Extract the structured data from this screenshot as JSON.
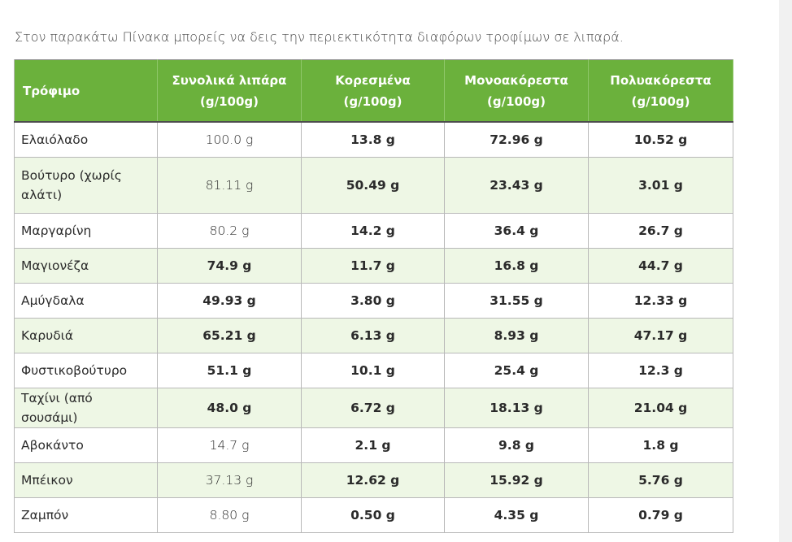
{
  "intro": "Στον παρακάτω Πίνακα μπορείς να δεις την περιεκτικότητα διαφόρων τροφίμων σε λιπαρά.",
  "colors": {
    "header_bg": "#6bb13c",
    "alt_row_bg": "#eef7e5"
  },
  "table": {
    "headers": [
      "Τρόφιμο",
      "Συνολικά λιπάρα (g/100g)",
      "Κορεσμένα (g/100g)",
      "Μονοακόρεστα (g/100g)",
      "Πολυακόρεστα (g/100g)"
    ],
    "rows": [
      {
        "food": "Ελαιόλαδο",
        "total": "100.0 g",
        "saturated": "13.8 g",
        "mono": "72.96 g",
        "poly": "10.52 g"
      },
      {
        "food": "Βούτυρο (χωρίς αλάτι)",
        "total": "81.11 g",
        "saturated": "50.49 g",
        "mono": "23.43 g",
        "poly": "3.01 g"
      },
      {
        "food": "Μαργαρίνη",
        "total": "80.2 g",
        "saturated": "14.2 g",
        "mono": "36.4 g",
        "poly": "26.7 g"
      },
      {
        "food": "Μαγιονέζα",
        "total": "74.9 g",
        "saturated": "11.7 g",
        "mono": "16.8 g",
        "poly": "44.7 g"
      },
      {
        "food": "Αμύγδαλα",
        "total": "49.93 g",
        "saturated": "3.80 g",
        "mono": "31.55 g",
        "poly": "12.33 g"
      },
      {
        "food": "Καρυδιά",
        "total": "65.21 g",
        "saturated": "6.13 g",
        "mono": "8.93 g",
        "poly": "47.17 g"
      },
      {
        "food": "Φυστικοβούτυρο",
        "total": "51.1 g",
        "saturated": "10.1 g",
        "mono": "25.4 g",
        "poly": "12.3 g"
      },
      {
        "food": "Ταχίνι (από σουσάμι)",
        "total": "48.0 g",
        "saturated": "6.72 g",
        "mono": "18.13 g",
        "poly": "21.04 g"
      },
      {
        "food": "Αβοκάντο",
        "total": "14.7 g",
        "saturated": "2.1 g",
        "mono": "9.8 g",
        "poly": "1.8 g"
      },
      {
        "food": "Μπέικον",
        "total": "37.13 g",
        "saturated": "12.62 g",
        "mono": "15.92 g",
        "poly": "5.76 g"
      },
      {
        "food": "Ζαμπόν",
        "total": "8.80 g",
        "saturated": "0.50 g",
        "mono": "4.35 g",
        "poly": "0.79 g"
      }
    ]
  }
}
